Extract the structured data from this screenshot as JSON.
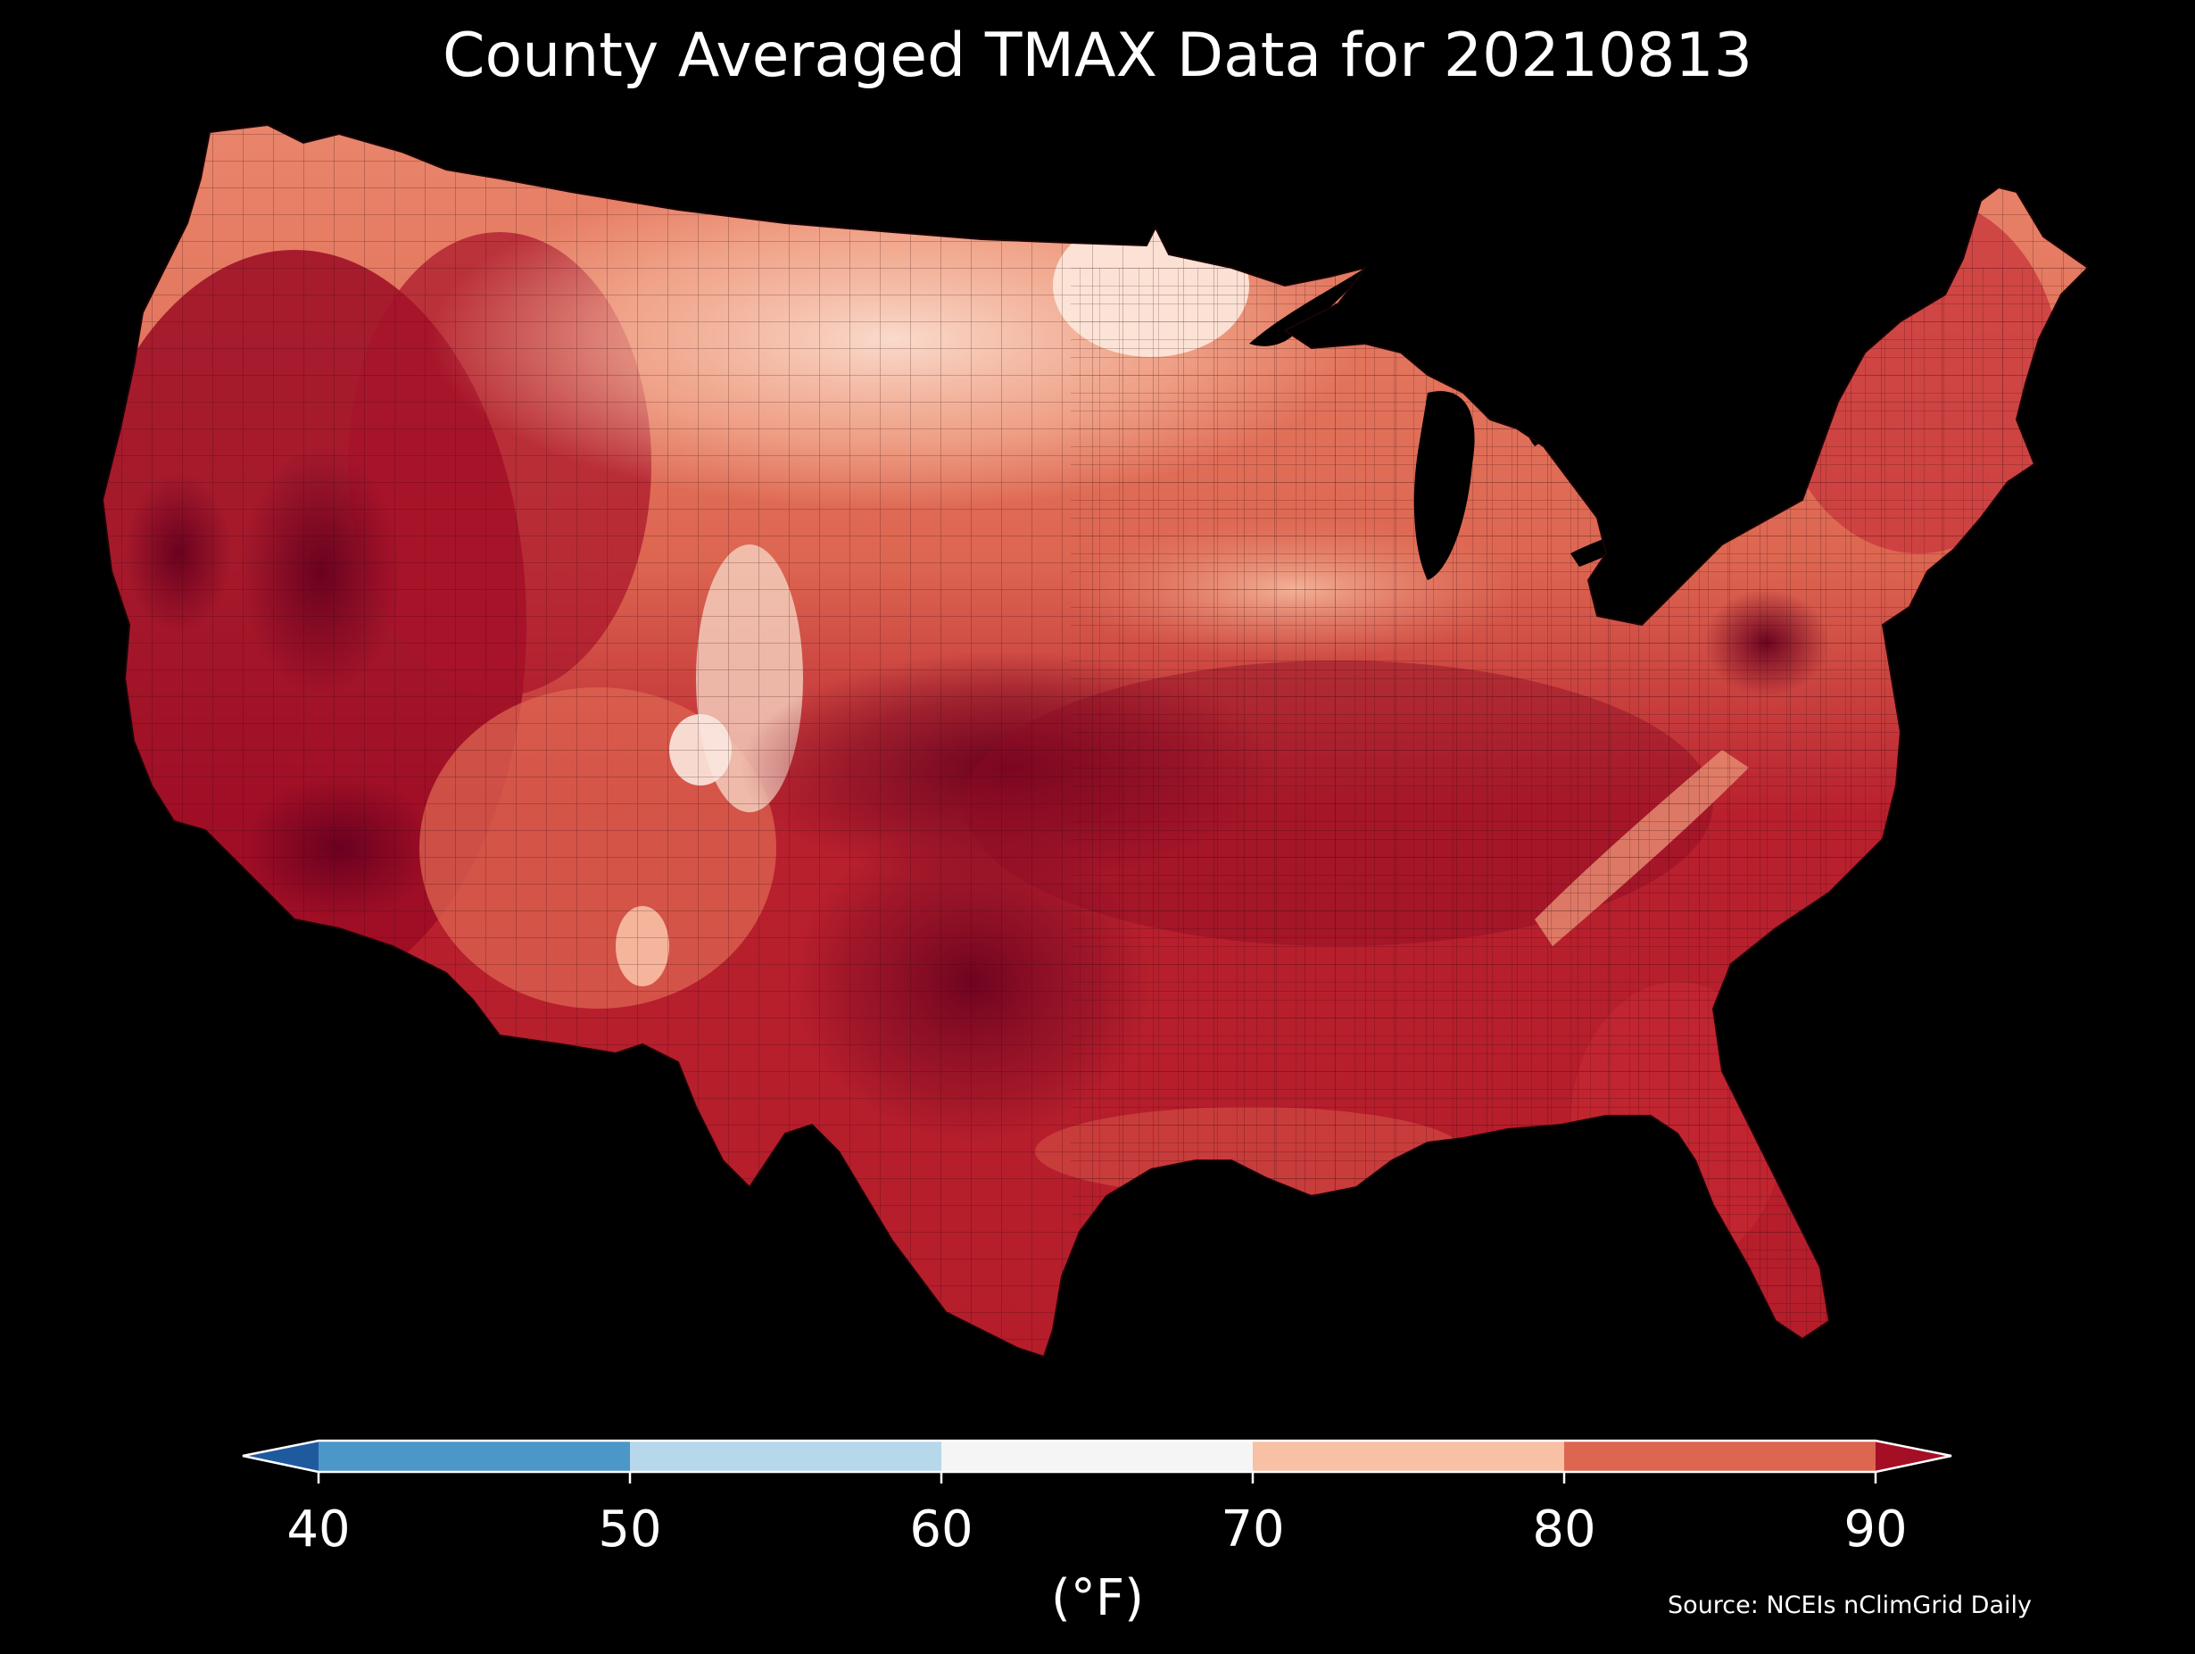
{
  "title": "County Averaged TMAX Data for 20210813",
  "colorbar": {
    "ticks": [
      "40",
      "50",
      "60",
      "70",
      "80",
      "90"
    ],
    "unit": "(°F)",
    "bins": [
      {
        "from": null,
        "to": 40,
        "color": "#1f5a9e"
      },
      {
        "from": 40,
        "to": 50,
        "color": "#4a97c8"
      },
      {
        "from": 50,
        "to": 60,
        "color": "#b7d8ea"
      },
      {
        "from": 60,
        "to": 70,
        "color": "#f5f5f5"
      },
      {
        "from": 70,
        "to": 80,
        "color": "#f8c0a5"
      },
      {
        "from": 80,
        "to": 90,
        "color": "#dd6651"
      },
      {
        "from": 90,
        "to": null,
        "color": "#a50f25"
      }
    ]
  },
  "source": "Source: NCEIs nClimGrid Daily",
  "colors": {
    "background": "#000000",
    "text": "#ffffff",
    "county_border": "#3a0a0a",
    "hottest": "#67001f"
  }
}
